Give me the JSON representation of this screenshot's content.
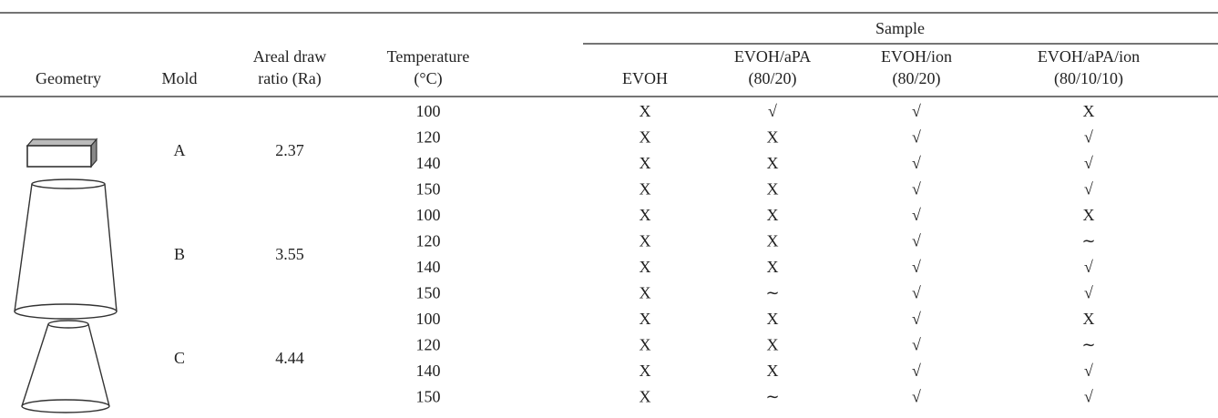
{
  "table": {
    "sample_group": "Sample",
    "columns": [
      [
        "Geometry"
      ],
      [
        "Mold"
      ],
      [
        "Areal draw",
        "ratio (Ra)"
      ],
      [
        "Temperature",
        "(°C)"
      ],
      [
        "EVOH"
      ],
      [
        "EVOH/aPA",
        "(80/20)"
      ],
      [
        "EVOH/ion",
        "(80/20)"
      ],
      [
        "EVOH/aPA/ion",
        "(80/10/10)"
      ]
    ],
    "groups": [
      {
        "mold": "A",
        "ratio": "2.37",
        "rows": [
          {
            "temperature": "100",
            "results": [
              "X",
              "√",
              "√",
              "X"
            ]
          },
          {
            "temperature": "120",
            "results": [
              "X",
              "X",
              "√",
              "√"
            ]
          },
          {
            "temperature": "140",
            "results": [
              "X",
              "X",
              "√",
              "√"
            ]
          },
          {
            "temperature": "150",
            "results": [
              "X",
              "X",
              "√",
              "√"
            ]
          }
        ]
      },
      {
        "mold": "B",
        "ratio": "3.55",
        "rows": [
          {
            "temperature": "100",
            "results": [
              "X",
              "X",
              "√",
              "X"
            ]
          },
          {
            "temperature": "120",
            "results": [
              "X",
              "X",
              "√",
              "∼"
            ]
          },
          {
            "temperature": "140",
            "results": [
              "X",
              "X",
              "√",
              "√"
            ]
          },
          {
            "temperature": "150",
            "results": [
              "X",
              "∼",
              "√",
              "√"
            ]
          }
        ]
      },
      {
        "mold": "C",
        "ratio": "4.44",
        "rows": [
          {
            "temperature": "100",
            "results": [
              "X",
              "X",
              "√",
              "X"
            ]
          },
          {
            "temperature": "120",
            "results": [
              "X",
              "X",
              "√",
              "∼"
            ]
          },
          {
            "temperature": "140",
            "results": [
              "X",
              "X",
              "√",
              "√"
            ]
          },
          {
            "temperature": "150",
            "results": [
              "X",
              "∼",
              "√",
              "√"
            ]
          }
        ]
      }
    ]
  }
}
